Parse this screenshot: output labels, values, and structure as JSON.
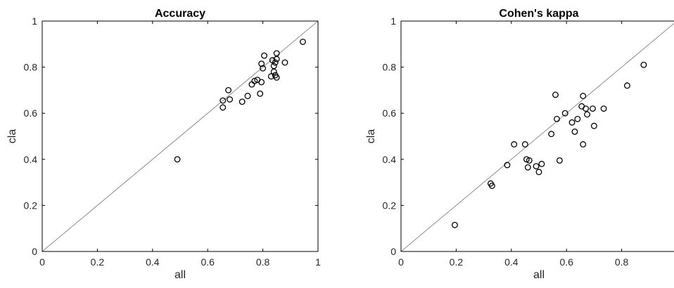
{
  "chart_data": [
    {
      "type": "scatter",
      "title": "Accuracy",
      "xlabel": "all",
      "ylabel": "cla",
      "xlim": [
        0,
        1
      ],
      "ylim": [
        0,
        1
      ],
      "xticks": [
        "0",
        "0.2",
        "0.4",
        "0.6",
        "0.8",
        "1"
      ],
      "yticks": [
        "0",
        "0.2",
        "0.4",
        "0.6",
        "0.8",
        "1"
      ],
      "reference_line": "y = x",
      "grid": false,
      "points": [
        {
          "x": 0.49,
          "y": 0.4
        },
        {
          "x": 0.655,
          "y": 0.655
        },
        {
          "x": 0.655,
          "y": 0.625
        },
        {
          "x": 0.675,
          "y": 0.7
        },
        {
          "x": 0.68,
          "y": 0.66
        },
        {
          "x": 0.725,
          "y": 0.65
        },
        {
          "x": 0.745,
          "y": 0.675
        },
        {
          "x": 0.76,
          "y": 0.725
        },
        {
          "x": 0.77,
          "y": 0.74
        },
        {
          "x": 0.78,
          "y": 0.745
        },
        {
          "x": 0.79,
          "y": 0.685
        },
        {
          "x": 0.795,
          "y": 0.735
        },
        {
          "x": 0.795,
          "y": 0.815
        },
        {
          "x": 0.8,
          "y": 0.795
        },
        {
          "x": 0.805,
          "y": 0.85
        },
        {
          "x": 0.83,
          "y": 0.76
        },
        {
          "x": 0.835,
          "y": 0.83
        },
        {
          "x": 0.84,
          "y": 0.805
        },
        {
          "x": 0.84,
          "y": 0.78
        },
        {
          "x": 0.845,
          "y": 0.765
        },
        {
          "x": 0.845,
          "y": 0.82
        },
        {
          "x": 0.85,
          "y": 0.86
        },
        {
          "x": 0.85,
          "y": 0.755
        },
        {
          "x": 0.85,
          "y": 0.835
        },
        {
          "x": 0.88,
          "y": 0.82
        },
        {
          "x": 0.945,
          "y": 0.91
        }
      ]
    },
    {
      "type": "scatter",
      "title": "Cohen's kappa",
      "xlabel": "all",
      "ylabel": "cla",
      "xlim": [
        0,
        1
      ],
      "ylim": [
        0,
        1
      ],
      "xticks": [
        "0",
        "0.2",
        "0.4",
        "0.6",
        "0.8"
      ],
      "yticks": [
        "0",
        "0.2",
        "0.4",
        "0.6",
        "0.8",
        "1"
      ],
      "reference_line": "y = x",
      "grid": false,
      "points": [
        {
          "x": 0.195,
          "y": 0.115
        },
        {
          "x": 0.325,
          "y": 0.295
        },
        {
          "x": 0.33,
          "y": 0.285
        },
        {
          "x": 0.385,
          "y": 0.375
        },
        {
          "x": 0.41,
          "y": 0.465
        },
        {
          "x": 0.45,
          "y": 0.465
        },
        {
          "x": 0.455,
          "y": 0.4
        },
        {
          "x": 0.46,
          "y": 0.365
        },
        {
          "x": 0.465,
          "y": 0.395
        },
        {
          "x": 0.49,
          "y": 0.37
        },
        {
          "x": 0.5,
          "y": 0.345
        },
        {
          "x": 0.51,
          "y": 0.38
        },
        {
          "x": 0.545,
          "y": 0.51
        },
        {
          "x": 0.56,
          "y": 0.68
        },
        {
          "x": 0.565,
          "y": 0.575
        },
        {
          "x": 0.575,
          "y": 0.395
        },
        {
          "x": 0.595,
          "y": 0.6
        },
        {
          "x": 0.62,
          "y": 0.56
        },
        {
          "x": 0.63,
          "y": 0.52
        },
        {
          "x": 0.64,
          "y": 0.575
        },
        {
          "x": 0.655,
          "y": 0.63
        },
        {
          "x": 0.66,
          "y": 0.675
        },
        {
          "x": 0.66,
          "y": 0.465
        },
        {
          "x": 0.67,
          "y": 0.62
        },
        {
          "x": 0.675,
          "y": 0.595
        },
        {
          "x": 0.695,
          "y": 0.62
        },
        {
          "x": 0.7,
          "y": 0.545
        },
        {
          "x": 0.735,
          "y": 0.62
        },
        {
          "x": 0.82,
          "y": 0.72
        },
        {
          "x": 0.88,
          "y": 0.81
        }
      ]
    }
  ]
}
